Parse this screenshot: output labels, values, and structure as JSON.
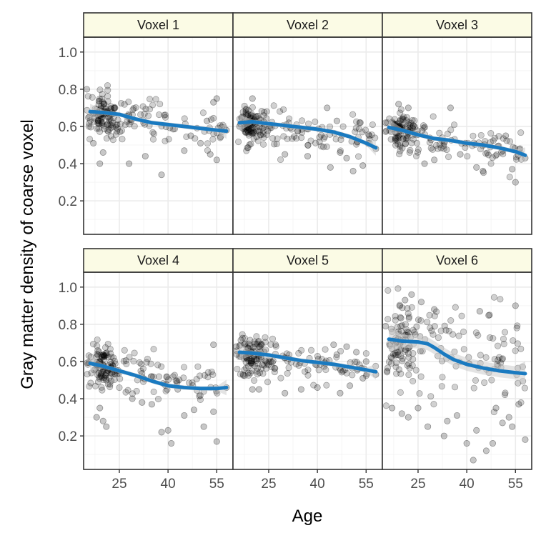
{
  "chart_data": {
    "type": "scatter",
    "layout": "facet-grid",
    "xlabel": "Age",
    "ylabel": "Gray matter density of coarse voxel",
    "xlim": [
      14,
      60
    ],
    "ylim": [
      0.02,
      1.08
    ],
    "xticks": [
      25,
      40,
      55
    ],
    "yticks": [
      0.2,
      0.4,
      0.6,
      0.8,
      1.0
    ],
    "ytick_labels": [
      "0.2",
      "0.4",
      "0.6",
      "0.8",
      "1.0"
    ],
    "grid": true,
    "point_style": "semi-transparent black circles",
    "colors": {
      "points": "#000000",
      "smooth_line": "#1a7ac0",
      "confidence_band": "#cccccc",
      "strip_fill": "#fbfbe5",
      "panel_border": "#333333",
      "grid_major": "#ebebeb",
      "grid_minor": "#f5f5f5"
    },
    "panels": [
      {
        "label": "Voxel 1",
        "smooth": {
          "x": [
            16,
            20,
            25,
            30,
            35,
            40,
            45,
            50,
            55,
            58
          ],
          "y": [
            0.68,
            0.675,
            0.665,
            0.64,
            0.62,
            0.61,
            0.6,
            0.59,
            0.58,
            0.575
          ]
        },
        "cloud": {
          "center": 0.66,
          "slope": -0.0024,
          "spread": 0.06
        },
        "points": [
          [
            15,
            0.8
          ],
          [
            17,
            0.51
          ],
          [
            19,
            0.4
          ],
          [
            20,
            0.46
          ],
          [
            28,
            0.4
          ],
          [
            33,
            0.44
          ],
          [
            38,
            0.34
          ],
          [
            45,
            0.47
          ],
          [
            53,
            0.45
          ],
          [
            55,
            0.75
          ],
          [
            54,
            0.73
          ],
          [
            58,
            0.58
          ],
          [
            55,
            0.42
          ],
          [
            52,
            0.63
          ],
          [
            47,
            0.55
          ],
          [
            50,
            0.51
          ]
        ]
      },
      {
        "label": "Voxel 2",
        "smooth": {
          "x": [
            16,
            20,
            25,
            30,
            35,
            40,
            45,
            50,
            55,
            58
          ],
          "y": [
            0.62,
            0.625,
            0.615,
            0.605,
            0.595,
            0.585,
            0.57,
            0.545,
            0.51,
            0.485
          ]
        },
        "cloud": {
          "center": 0.61,
          "slope": -0.0022,
          "spread": 0.05
        },
        "points": [
          [
            20,
            0.75
          ],
          [
            16,
            0.6
          ],
          [
            30,
            0.45
          ],
          [
            37,
            0.44
          ],
          [
            44,
            0.38
          ],
          [
            47,
            0.46
          ],
          [
            51,
            0.36
          ],
          [
            54,
            0.39
          ],
          [
            56,
            0.55
          ],
          [
            58,
            0.48
          ],
          [
            53,
            0.62
          ],
          [
            46,
            0.63
          ],
          [
            43,
            0.7
          ],
          [
            49,
            0.43
          ]
        ]
      },
      {
        "label": "Voxel 3",
        "smooth": {
          "x": [
            16,
            20,
            25,
            30,
            35,
            40,
            45,
            50,
            55,
            58
          ],
          "y": [
            0.595,
            0.58,
            0.555,
            0.535,
            0.525,
            0.51,
            0.5,
            0.485,
            0.465,
            0.445
          ]
        },
        "cloud": {
          "center": 0.57,
          "slope": -0.003,
          "spread": 0.05
        },
        "points": [
          [
            15,
            0.62
          ],
          [
            19,
            0.72
          ],
          [
            22,
            0.7
          ],
          [
            35,
            0.7
          ],
          [
            45,
            0.36
          ],
          [
            55,
            0.3
          ],
          [
            54,
            0.37
          ],
          [
            58,
            0.43
          ],
          [
            43,
            0.38
          ],
          [
            38,
            0.45
          ],
          [
            52,
            0.55
          ],
          [
            30,
            0.42
          ],
          [
            27,
            0.4
          ]
        ]
      },
      {
        "label": "Voxel 4",
        "smooth": {
          "x": [
            16,
            20,
            25,
            30,
            35,
            40,
            45,
            50,
            55,
            58
          ],
          "y": [
            0.59,
            0.575,
            0.55,
            0.525,
            0.495,
            0.47,
            0.46,
            0.455,
            0.455,
            0.46
          ]
        },
        "cloud": {
          "center": 0.57,
          "slope": -0.003,
          "spread": 0.06
        },
        "points": [
          [
            18,
            0.3
          ],
          [
            19,
            0.35
          ],
          [
            20,
            0.28
          ],
          [
            21,
            0.25
          ],
          [
            40,
            0.23
          ],
          [
            41,
            0.16
          ],
          [
            38,
            0.22
          ],
          [
            45,
            0.31
          ],
          [
            48,
            0.34
          ],
          [
            51,
            0.25
          ],
          [
            54,
            0.69
          ],
          [
            55,
            0.17
          ],
          [
            54,
            0.33
          ],
          [
            43,
            0.45
          ],
          [
            29,
            0.4
          ],
          [
            32,
            0.38
          ],
          [
            35,
            0.37
          ],
          [
            58,
            0.46
          ]
        ]
      },
      {
        "label": "Voxel 5",
        "smooth": {
          "x": [
            16,
            20,
            25,
            30,
            35,
            40,
            45,
            50,
            55,
            58
          ],
          "y": [
            0.65,
            0.645,
            0.635,
            0.62,
            0.605,
            0.595,
            0.585,
            0.57,
            0.555,
            0.545
          ]
        },
        "cloud": {
          "center": 0.63,
          "slope": -0.002,
          "spread": 0.05
        },
        "points": [
          [
            15,
            0.68
          ],
          [
            20,
            0.45
          ],
          [
            22,
            0.45
          ],
          [
            30,
            0.43
          ],
          [
            35,
            0.45
          ],
          [
            40,
            0.46
          ],
          [
            47,
            0.43
          ],
          [
            50,
            0.47
          ],
          [
            54,
            0.51
          ],
          [
            55,
            0.6
          ],
          [
            58,
            0.53
          ],
          [
            45,
            0.69
          ],
          [
            49,
            0.68
          ],
          [
            52,
            0.65
          ]
        ]
      },
      {
        "label": "Voxel 6",
        "smooth": {
          "x": [
            16,
            20,
            25,
            28,
            30,
            33,
            36,
            40,
            45,
            50,
            55,
            58
          ],
          "y": [
            0.72,
            0.71,
            0.705,
            0.695,
            0.675,
            0.64,
            0.61,
            0.585,
            0.565,
            0.55,
            0.54,
            0.535
          ]
        },
        "cloud": {
          "center": 0.7,
          "slope": -0.003,
          "spread": 0.12
        },
        "points": [
          [
            15,
            0.79
          ],
          [
            17,
            0.35
          ],
          [
            20,
            0.32
          ],
          [
            22,
            0.3
          ],
          [
            25,
            0.35
          ],
          [
            28,
            0.25
          ],
          [
            33,
            0.2
          ],
          [
            40,
            0.16
          ],
          [
            43,
            0.23
          ],
          [
            46,
            0.12
          ],
          [
            48,
            0.16
          ],
          [
            51,
            0.27
          ],
          [
            53,
            0.3
          ],
          [
            54,
            0.25
          ],
          [
            55,
            0.9
          ],
          [
            58,
            0.18
          ],
          [
            56,
            0.37
          ],
          [
            42,
            0.07
          ],
          [
            49,
            0.35
          ],
          [
            37,
            0.31
          ],
          [
            34,
            0.28
          ],
          [
            21,
            0.93
          ],
          [
            23,
            0.96
          ],
          [
            26,
            0.92
          ],
          [
            30,
            0.88
          ],
          [
            44,
            0.87
          ],
          [
            47,
            0.85
          ]
        ]
      }
    ]
  }
}
